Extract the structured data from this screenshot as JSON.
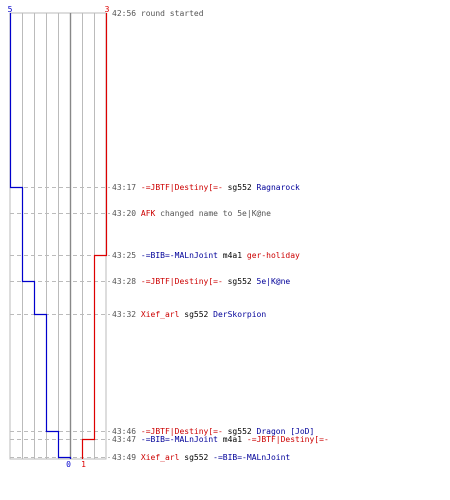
{
  "colors": {
    "blue_team": "#0000cc",
    "red_team": "#dd0000",
    "grid": "#bbbbbb",
    "center": "#888888",
    "guide": "#bbbbbb",
    "time_text": "#555555",
    "blue_name": "#000099",
    "red_name": "#cc0000"
  },
  "timeline": {
    "top_scores": {
      "blue": "5",
      "red": "3"
    },
    "bottom_scores": {
      "blue": "0",
      "red": "1"
    },
    "events": [
      {
        "time": "42:56",
        "parts": [
          {
            "text": "round started",
            "color": "text"
          }
        ]
      },
      {
        "time": "43:17",
        "parts": [
          {
            "text": "-=JBTF|Destiny[=-",
            "color": "red"
          },
          {
            "text": " sg552 ",
            "color": "black"
          },
          {
            "text": "Ragnarock",
            "color": "blue"
          }
        ]
      },
      {
        "time": "43:20",
        "parts": [
          {
            "text": "AFK",
            "color": "red"
          },
          {
            "text": " changed name to 5e|K@ne",
            "color": "text"
          }
        ]
      },
      {
        "time": "43:25",
        "parts": [
          {
            "text": "-=BIB=-MALnJoint",
            "color": "blue"
          },
          {
            "text": " m4a1 ",
            "color": "black"
          },
          {
            "text": "ger-holiday",
            "color": "red"
          }
        ]
      },
      {
        "time": "43:28",
        "parts": [
          {
            "text": "-=JBTF|Destiny[=-",
            "color": "red"
          },
          {
            "text": " sg552 ",
            "color": "black"
          },
          {
            "text": "5e|K@ne",
            "color": "blue"
          }
        ]
      },
      {
        "time": "43:32",
        "parts": [
          {
            "text": "Xief_arl",
            "color": "red"
          },
          {
            "text": " sg552 ",
            "color": "black"
          },
          {
            "text": "DerSkorpion",
            "color": "blue"
          }
        ]
      },
      {
        "time": "43:46",
        "parts": [
          {
            "text": "-=JBTF|Destiny[=-",
            "color": "red"
          },
          {
            "text": " sg552 ",
            "color": "black"
          },
          {
            "text": "Dragon [JoD]",
            "color": "blue"
          }
        ]
      },
      {
        "time": "43:47",
        "parts": [
          {
            "text": "-=BIB=-MALnJoint",
            "color": "blue"
          },
          {
            "text": " m4a1 ",
            "color": "black"
          },
          {
            "text": "-=JBTF|Destiny[=-",
            "color": "red"
          }
        ]
      },
      {
        "time": "43:49",
        "parts": [
          {
            "text": "Xief_arl",
            "color": "red"
          },
          {
            "text": " sg552 ",
            "color": "black"
          },
          {
            "text": "-=BIB=-MALnJoint",
            "color": "blue"
          }
        ]
      }
    ]
  },
  "chart_data": {
    "type": "line",
    "x_unit": "players alive",
    "xlim": [
      0,
      5
    ],
    "y_unit": "round time",
    "y": [
      "42:56",
      "43:17",
      "43:20",
      "43:25",
      "43:28",
      "43:32",
      "43:46",
      "43:47",
      "43:49"
    ],
    "series": [
      {
        "team": "blue",
        "values": [
          5,
          4,
          4,
          4,
          3,
          2,
          1,
          1,
          0
        ]
      },
      {
        "team": "red",
        "values": [
          3,
          3,
          3,
          2,
          2,
          2,
          2,
          1,
          1
        ]
      }
    ],
    "grid": true
  }
}
